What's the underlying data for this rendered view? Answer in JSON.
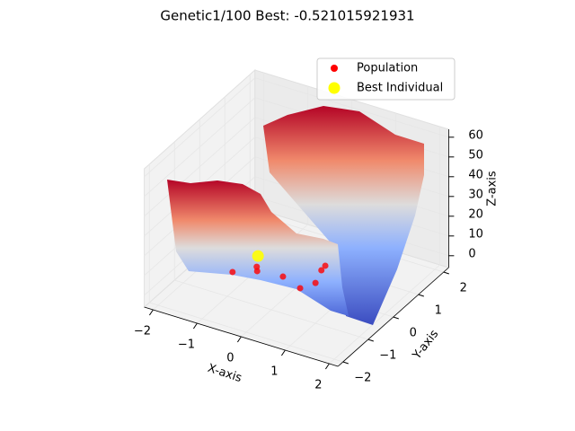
{
  "chart_data": {
    "type": "scatter3d",
    "title": "Genetic1/100 Best: -0.521015921931",
    "xlabel": "X-axis",
    "ylabel": "Y-axis",
    "zlabel": "Z-axis",
    "xlim": [
      -2.2,
      2.2
    ],
    "ylim": [
      -2.2,
      2.2
    ],
    "zlim": [
      -6,
      64
    ],
    "xticks": [
      {
        "value": -2,
        "label": "−2"
      },
      {
        "value": -1,
        "label": "−1"
      },
      0,
      1,
      2
    ],
    "yticks": [
      {
        "value": -2,
        "label": "−2"
      },
      {
        "value": -1,
        "label": "−1"
      },
      0,
      1,
      2
    ],
    "zticks": [
      0,
      10,
      20,
      30,
      40,
      50,
      60
    ],
    "grid": true,
    "legend": "upper right",
    "series": [
      {
        "name": "Population",
        "color": "#ff0000",
        "x": [
          -1.11,
          -0.8,
          -0.71,
          -0.17,
          0.34,
          0.5,
          0.36,
          0.34
        ],
        "y": [
          -0.6,
          -0.18,
          -0.32,
          -0.24,
          -0.45,
          -0.12,
          0.36,
          0.55
        ],
        "z": [
          1,
          1,
          1,
          1,
          1,
          1,
          1,
          1
        ]
      },
      {
        "name": "Best Individual",
        "color": "#ffff00",
        "x": [
          -1.04
        ],
        "y": [
          0.29
        ],
        "z": [
          -0.52
        ]
      }
    ]
  }
}
